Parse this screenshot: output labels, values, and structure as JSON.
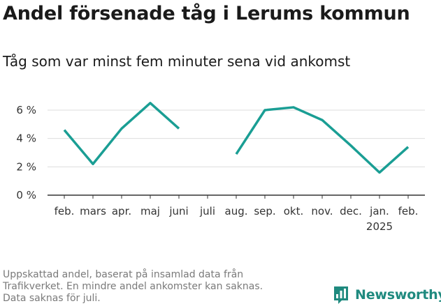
{
  "title": "Andel försenade tåg i Lerums kommun",
  "subtitle": "Tåg som var minst fem minuter sena vid ankomst",
  "footer": {
    "lines": [
      "Uppskattad andel, baserat på insamlad data från",
      "Trafikverket. En mindre andel ankomster kan saknas.",
      "Data saknas för juli."
    ]
  },
  "brand": {
    "name": "Newsworthy",
    "icon": "bar-chart-icon",
    "color": "#1f8a7f"
  },
  "chart_data": {
    "type": "line",
    "categories": [
      "feb.",
      "mars",
      "apr.",
      "maj",
      "juni",
      "juli",
      "aug.",
      "sep.",
      "okt.",
      "nov.",
      "dec.",
      "jan.",
      "feb."
    ],
    "year_label": {
      "index": 11,
      "text": "2025"
    },
    "series": [
      {
        "color": "#1a9e94",
        "values": [
          4.6,
          2.2,
          4.7,
          6.5,
          4.7,
          null,
          2.9,
          6.0,
          6.2,
          5.3,
          3.5,
          1.6,
          3.4
        ]
      }
    ],
    "y_ticks": [
      {
        "value": 0,
        "label": "0 %"
      },
      {
        "value": 2,
        "label": "2 %"
      },
      {
        "value": 4,
        "label": "4 %"
      },
      {
        "value": 6,
        "label": "6 %"
      }
    ],
    "ylim": [
      0,
      7
    ],
    "grid": true,
    "colors": {
      "grid": "#dddddd",
      "axis": "#333333"
    }
  }
}
